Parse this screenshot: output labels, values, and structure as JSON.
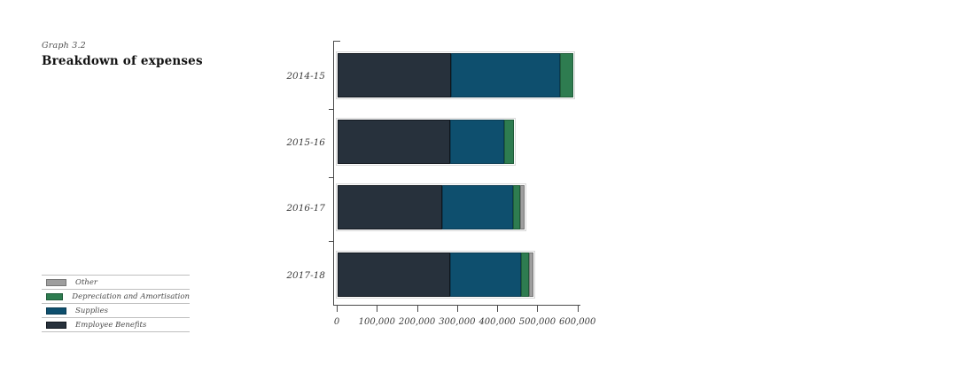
{
  "header": {
    "eyebrow": "Graph 3.2",
    "title": "Breakdown of expenses"
  },
  "chart_data": {
    "type": "bar",
    "orientation": "horizontal",
    "stacked": true,
    "title": "Breakdown of expenses",
    "categories": [
      "2014-15",
      "2015-16",
      "2016-17",
      "2017-18"
    ],
    "series": [
      {
        "name": "Employee Benefits",
        "color": "#27313c",
        "border_color": "#10161d",
        "values": [
          283000,
          280000,
          261000,
          280000
        ]
      },
      {
        "name": "Supplies",
        "color": "#0e4f6e",
        "border_color": "#093a52",
        "values": [
          271000,
          135000,
          177000,
          177000
        ]
      },
      {
        "name": "Depreciation and Amortisation",
        "color": "#2e7c50",
        "border_color": "#1f5c39",
        "values": [
          33000,
          24000,
          18000,
          20000
        ]
      },
      {
        "name": "Other",
        "color": "#9e9e9e",
        "border_color": "#767676",
        "values": [
          0,
          0,
          9000,
          11000
        ]
      }
    ],
    "xlim": [
      0,
      600000
    ],
    "x_ticks": [
      0,
      100000,
      200000,
      300000,
      400000,
      500000,
      600000
    ],
    "x_tick_labels": [
      "0",
      "100,000",
      "200,000",
      "300,000",
      "400,000",
      "500,000",
      "600,000"
    ],
    "grid": false,
    "legend_position": "bottom-left",
    "legend_order_reversed": true
  }
}
